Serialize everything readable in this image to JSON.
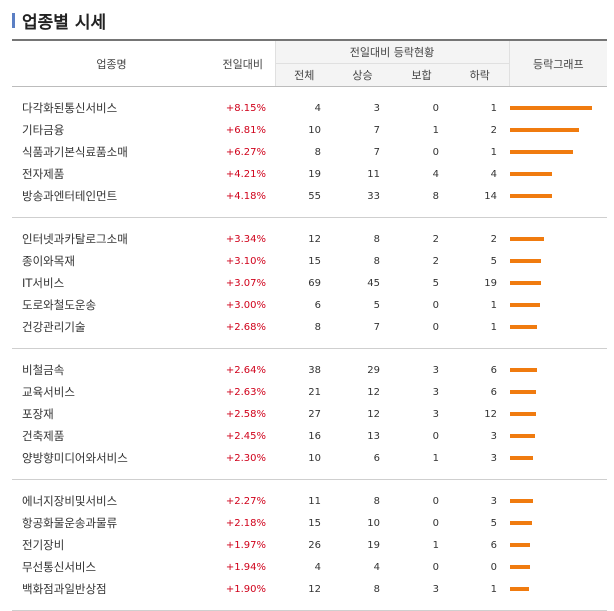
{
  "title": "업종별 시세",
  "header": {
    "name": "업종명",
    "change": "전일대비",
    "status_group": "전일대비 등락현황",
    "total": "전체",
    "up": "상승",
    "flat": "보합",
    "down": "하락",
    "graph": "등락그래프"
  },
  "colors": {
    "rate": "#d0021b",
    "bar": "#f07b0f",
    "title_accent": "#5b7fc4"
  },
  "groups": [
    {
      "rows": [
        {
          "name": "다각화된통신서비스",
          "change": "+8.15%",
          "total": "4",
          "up": "3",
          "flat": "0",
          "down": "1",
          "bar_level": 8.15
        },
        {
          "name": "기타금융",
          "change": "+6.81%",
          "total": "10",
          "up": "7",
          "flat": "1",
          "down": "2",
          "bar_level": 6.81
        },
        {
          "name": "식품과기본식료품소매",
          "change": "+6.27%",
          "total": "8",
          "up": "7",
          "flat": "0",
          "down": "1",
          "bar_level": 6.27
        },
        {
          "name": "전자제품",
          "change": "+4.21%",
          "total": "19",
          "up": "11",
          "flat": "4",
          "down": "4",
          "bar_level": 4.21
        },
        {
          "name": "방송과엔터테인먼트",
          "change": "+4.18%",
          "total": "55",
          "up": "33",
          "flat": "8",
          "down": "14",
          "bar_level": 4.18
        }
      ]
    },
    {
      "rows": [
        {
          "name": "인터넷과카탈로그소매",
          "change": "+3.34%",
          "total": "12",
          "up": "8",
          "flat": "2",
          "down": "2",
          "bar_level": 3.34
        },
        {
          "name": "종이와목재",
          "change": "+3.10%",
          "total": "15",
          "up": "8",
          "flat": "2",
          "down": "5",
          "bar_level": 3.1
        },
        {
          "name": "IT서비스",
          "change": "+3.07%",
          "total": "69",
          "up": "45",
          "flat": "5",
          "down": "19",
          "bar_level": 3.07
        },
        {
          "name": "도로와철도운송",
          "change": "+3.00%",
          "total": "6",
          "up": "5",
          "flat": "0",
          "down": "1",
          "bar_level": 3.0
        },
        {
          "name": "건강관리기술",
          "change": "+2.68%",
          "total": "8",
          "up": "7",
          "flat": "0",
          "down": "1",
          "bar_level": 2.68
        }
      ]
    },
    {
      "rows": [
        {
          "name": "비철금속",
          "change": "+2.64%",
          "total": "38",
          "up": "29",
          "flat": "3",
          "down": "6",
          "bar_level": 2.64
        },
        {
          "name": "교육서비스",
          "change": "+2.63%",
          "total": "21",
          "up": "12",
          "flat": "3",
          "down": "6",
          "bar_level": 2.63
        },
        {
          "name": "포장재",
          "change": "+2.58%",
          "total": "27",
          "up": "12",
          "flat": "3",
          "down": "12",
          "bar_level": 2.58
        },
        {
          "name": "건축제품",
          "change": "+2.45%",
          "total": "16",
          "up": "13",
          "flat": "0",
          "down": "3",
          "bar_level": 2.45
        },
        {
          "name": "양방향미디어와서비스",
          "change": "+2.30%",
          "total": "10",
          "up": "6",
          "flat": "1",
          "down": "3",
          "bar_level": 2.3
        }
      ]
    },
    {
      "rows": [
        {
          "name": "에너지장비및서비스",
          "change": "+2.27%",
          "total": "11",
          "up": "8",
          "flat": "0",
          "down": "3",
          "bar_level": 2.27
        },
        {
          "name": "항공화물운송과물류",
          "change": "+2.18%",
          "total": "15",
          "up": "10",
          "flat": "0",
          "down": "5",
          "bar_level": 2.18
        },
        {
          "name": "전기장비",
          "change": "+1.97%",
          "total": "26",
          "up": "19",
          "flat": "1",
          "down": "6",
          "bar_level": 1.97
        },
        {
          "name": "무선통신서비스",
          "change": "+1.94%",
          "total": "4",
          "up": "4",
          "flat": "0",
          "down": "0",
          "bar_level": 1.94
        },
        {
          "name": "백화점과일반상점",
          "change": "+1.90%",
          "total": "12",
          "up": "8",
          "flat": "3",
          "down": "1",
          "bar_level": 1.9
        }
      ]
    }
  ]
}
